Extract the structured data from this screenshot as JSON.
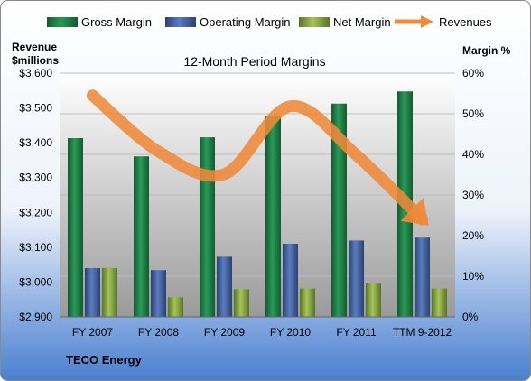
{
  "chart_data": {
    "type": "bar",
    "title": "12-Month Period Margins",
    "company": "TECO Energy",
    "left_axis_title": [
      "Revenue",
      "$millions"
    ],
    "right_axis_title": "Margin %",
    "categories": [
      "FY 2007",
      "FY 2008",
      "FY 2009",
      "FY 2010",
      "FY 2011",
      "TTM 9-2012"
    ],
    "left_ylim": [
      2900,
      3600
    ],
    "left_ticks": [
      "$2,900",
      "$3,000",
      "$3,100",
      "$3,200",
      "$3,300",
      "$3,400",
      "$3,500",
      "$3,600"
    ],
    "left_tick_values": [
      2900,
      3000,
      3100,
      3200,
      3300,
      3400,
      3500,
      3600
    ],
    "right_ylim": [
      0,
      60
    ],
    "right_ticks": [
      "0%",
      "10%",
      "20%",
      "30%",
      "40%",
      "50%",
      "60%"
    ],
    "right_tick_values": [
      0,
      10,
      20,
      30,
      40,
      50,
      60
    ],
    "series": [
      {
        "name": "Gross Margin",
        "axis": "right",
        "color": "#1e7a44",
        "values": [
          44,
          39.5,
          44.2,
          49.5,
          52.5,
          55.5
        ]
      },
      {
        "name": "Operating Margin",
        "axis": "right",
        "color": "#3b5a94",
        "values": [
          12,
          11.5,
          14.8,
          18,
          18.8,
          19.5
        ]
      },
      {
        "name": "Net Margin",
        "axis": "right",
        "color": "#7a9a3a",
        "values": [
          12,
          4.8,
          6.8,
          7,
          8.2,
          7
        ]
      }
    ],
    "line_series": {
      "name": "Revenues",
      "axis": "left",
      "color": "#ee8a3a",
      "values": [
        3536,
        3375,
        3310,
        3505,
        3365,
        3180
      ]
    },
    "legend_position": "top",
    "grid": true
  }
}
